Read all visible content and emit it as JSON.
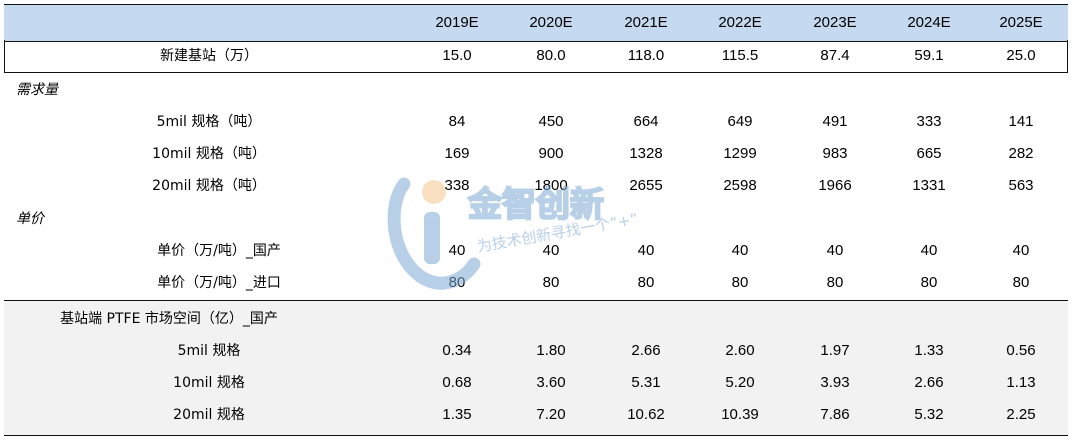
{
  "columns": [
    "2019E",
    "2020E",
    "2021E",
    "2022E",
    "2023E",
    "2024E",
    "2025E"
  ],
  "rows": [
    {
      "label": "新建基站（万）",
      "values": [
        "15.0",
        "80.0",
        "118.0",
        "115.5",
        "87.4",
        "59.1",
        "25.0"
      ]
    },
    {
      "label": "需求量",
      "values": []
    },
    {
      "label": "5mil 规格（吨）",
      "values": [
        "84",
        "450",
        "664",
        "649",
        "491",
        "333",
        "141"
      ]
    },
    {
      "label": "10mil 规格（吨）",
      "values": [
        "169",
        "900",
        "1328",
        "1299",
        "983",
        "665",
        "282"
      ]
    },
    {
      "label": "20mil 规格（吨）",
      "values": [
        "338",
        "1800",
        "2655",
        "2598",
        "1966",
        "1331",
        "563"
      ]
    },
    {
      "label": "单价",
      "values": []
    },
    {
      "label": "单价（万/吨）_国产",
      "values": [
        "40",
        "40",
        "40",
        "40",
        "40",
        "40",
        "40"
      ]
    },
    {
      "label": "单价（万/吨）_进口",
      "values": [
        "80",
        "80",
        "80",
        "80",
        "80",
        "80",
        "80"
      ]
    },
    {
      "label": "基站端 PTFE 市场空间（亿）_国产",
      "values": []
    },
    {
      "label": "5mil 规格",
      "values": [
        "0.34",
        "1.80",
        "2.66",
        "2.60",
        "1.97",
        "1.33",
        "0.56"
      ]
    },
    {
      "label": "10mil 规格",
      "values": [
        "0.68",
        "3.60",
        "5.31",
        "5.20",
        "3.93",
        "2.66",
        "1.13"
      ]
    },
    {
      "label": "20mil 规格",
      "values": [
        "1.35",
        "7.20",
        "10.62",
        "10.39",
        "7.86",
        "5.32",
        "2.25"
      ]
    }
  ],
  "watermark": {
    "brand": "金智创新",
    "slogan": "为技术创新寻找一个“+”",
    "color": "#7fa9d6"
  }
}
